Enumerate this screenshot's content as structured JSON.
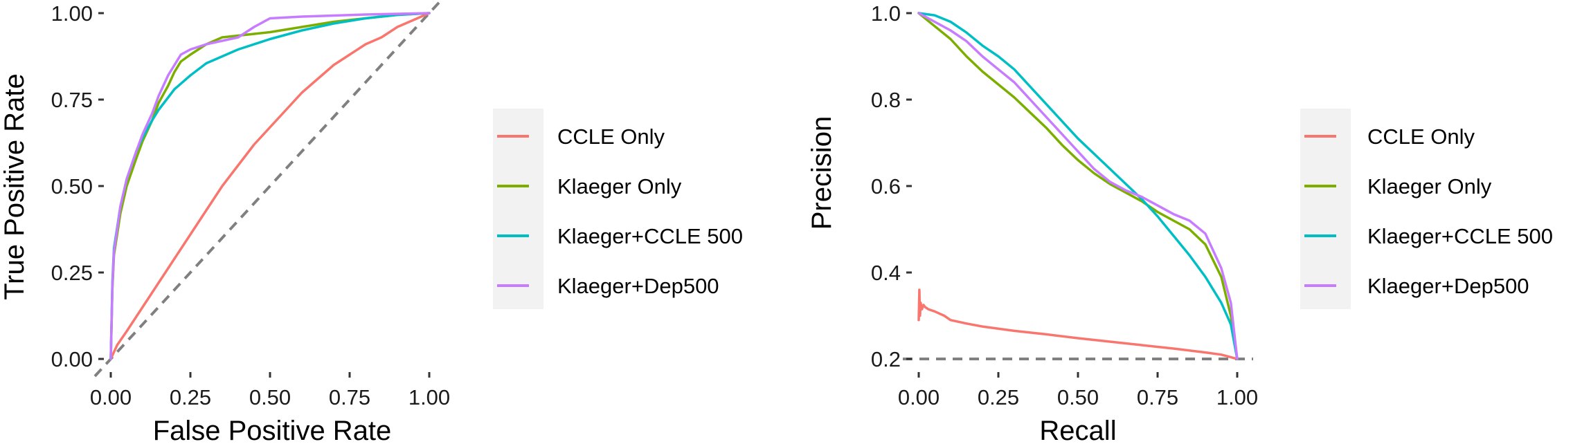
{
  "chart_data": [
    {
      "type": "line",
      "title": "",
      "xlabel": "False Positive Rate",
      "ylabel": "True Positive Rate",
      "xlim": [
        0,
        1
      ],
      "ylim": [
        0,
        1
      ],
      "x_ticks": [
        "0.00",
        "0.25",
        "0.50",
        "0.75",
        "1.00"
      ],
      "y_ticks": [
        "0.00",
        "0.25",
        "0.50",
        "0.75",
        "1.00"
      ],
      "grid": false,
      "reference_line": {
        "style": "dashed",
        "color": "#808080",
        "x": [
          -0.05,
          1.05
        ],
        "y": [
          -0.05,
          1.05
        ]
      },
      "legend_position": "right",
      "series": [
        {
          "name": "CCLE Only",
          "color": "#F8766D",
          "x": [
            0,
            0.02,
            0.05,
            0.1,
            0.15,
            0.2,
            0.25,
            0.3,
            0.35,
            0.4,
            0.45,
            0.5,
            0.55,
            0.6,
            0.65,
            0.7,
            0.75,
            0.8,
            0.85,
            0.9,
            0.95,
            1.0
          ],
          "y": [
            0,
            0.04,
            0.08,
            0.15,
            0.22,
            0.29,
            0.36,
            0.43,
            0.5,
            0.56,
            0.62,
            0.67,
            0.72,
            0.77,
            0.81,
            0.85,
            0.88,
            0.91,
            0.93,
            0.96,
            0.98,
            1.0
          ]
        },
        {
          "name": "Klaeger Only",
          "color": "#7CAE00",
          "x": [
            0,
            0.005,
            0.01,
            0.03,
            0.05,
            0.08,
            0.1,
            0.13,
            0.15,
            0.18,
            0.2,
            0.22,
            0.25,
            0.3,
            0.35,
            0.4,
            0.5,
            0.6,
            0.7,
            0.8,
            0.9,
            1.0
          ],
          "y": [
            0,
            0.2,
            0.3,
            0.42,
            0.5,
            0.58,
            0.63,
            0.69,
            0.74,
            0.79,
            0.83,
            0.86,
            0.88,
            0.91,
            0.93,
            0.935,
            0.945,
            0.96,
            0.975,
            0.985,
            0.995,
            1.0
          ]
        },
        {
          "name": "Klaeger+CCLE 500",
          "color": "#00BFC4",
          "x": [
            0,
            0.005,
            0.01,
            0.03,
            0.05,
            0.08,
            0.1,
            0.13,
            0.15,
            0.2,
            0.25,
            0.3,
            0.4,
            0.5,
            0.6,
            0.7,
            0.8,
            0.9,
            1.0
          ],
          "y": [
            0,
            0.22,
            0.32,
            0.44,
            0.52,
            0.6,
            0.64,
            0.69,
            0.72,
            0.78,
            0.82,
            0.855,
            0.895,
            0.925,
            0.95,
            0.97,
            0.985,
            0.995,
            1.0
          ]
        },
        {
          "name": "Klaeger+Dep500",
          "color": "#C77CFF",
          "x": [
            0,
            0.005,
            0.01,
            0.03,
            0.05,
            0.08,
            0.1,
            0.13,
            0.15,
            0.18,
            0.2,
            0.22,
            0.25,
            0.3,
            0.35,
            0.4,
            0.45,
            0.5,
            0.6,
            0.7,
            0.8,
            0.9,
            1.0
          ],
          "y": [
            0,
            0.21,
            0.31,
            0.44,
            0.52,
            0.6,
            0.65,
            0.71,
            0.76,
            0.82,
            0.85,
            0.88,
            0.895,
            0.91,
            0.92,
            0.93,
            0.96,
            0.985,
            0.99,
            0.993,
            0.996,
            0.998,
            1.0
          ]
        }
      ]
    },
    {
      "type": "line",
      "title": "",
      "xlabel": "Recall",
      "ylabel": "Precision",
      "xlim": [
        0,
        1
      ],
      "ylim": [
        0.2,
        1.0
      ],
      "x_ticks": [
        "0.00",
        "0.25",
        "0.50",
        "0.75",
        "1.00"
      ],
      "y_ticks": [
        "0.2",
        "0.4",
        "0.6",
        "0.8",
        "1.0"
      ],
      "grid": false,
      "reference_line": {
        "style": "dashed",
        "color": "#808080",
        "x": [
          -0.05,
          1.05
        ],
        "y": [
          0.2,
          0.2
        ]
      },
      "legend_position": "right",
      "series": [
        {
          "name": "CCLE Only",
          "color": "#F8766D",
          "x": [
            0,
            0.002,
            0.004,
            0.006,
            0.01,
            0.015,
            0.02,
            0.03,
            0.05,
            0.08,
            0.1,
            0.15,
            0.2,
            0.3,
            0.4,
            0.5,
            0.6,
            0.7,
            0.8,
            0.9,
            0.95,
            1.0
          ],
          "y": [
            0.29,
            0.36,
            0.3,
            0.33,
            0.315,
            0.325,
            0.32,
            0.315,
            0.31,
            0.3,
            0.29,
            0.282,
            0.275,
            0.265,
            0.257,
            0.248,
            0.24,
            0.232,
            0.224,
            0.215,
            0.21,
            0.2
          ]
        },
        {
          "name": "Klaeger Only",
          "color": "#7CAE00",
          "x": [
            0,
            0.05,
            0.1,
            0.15,
            0.2,
            0.25,
            0.3,
            0.35,
            0.4,
            0.45,
            0.5,
            0.55,
            0.6,
            0.65,
            0.7,
            0.75,
            0.8,
            0.85,
            0.9,
            0.95,
            0.98,
            1.0
          ],
          "y": [
            1.0,
            0.97,
            0.94,
            0.9,
            0.865,
            0.835,
            0.805,
            0.77,
            0.735,
            0.695,
            0.66,
            0.63,
            0.605,
            0.585,
            0.565,
            0.54,
            0.52,
            0.5,
            0.465,
            0.39,
            0.3,
            0.2
          ]
        },
        {
          "name": "Klaeger+CCLE 500",
          "color": "#00BFC4",
          "x": [
            0,
            0.05,
            0.1,
            0.15,
            0.2,
            0.25,
            0.3,
            0.35,
            0.4,
            0.45,
            0.5,
            0.55,
            0.6,
            0.65,
            0.7,
            0.75,
            0.8,
            0.85,
            0.9,
            0.95,
            0.98,
            1.0
          ],
          "y": [
            1.0,
            0.995,
            0.98,
            0.955,
            0.925,
            0.9,
            0.87,
            0.83,
            0.79,
            0.75,
            0.71,
            0.675,
            0.64,
            0.605,
            0.57,
            0.53,
            0.485,
            0.44,
            0.39,
            0.33,
            0.28,
            0.2
          ]
        },
        {
          "name": "Klaeger+Dep500",
          "color": "#C77CFF",
          "x": [
            0,
            0.05,
            0.1,
            0.15,
            0.2,
            0.25,
            0.3,
            0.35,
            0.4,
            0.45,
            0.5,
            0.55,
            0.6,
            0.65,
            0.7,
            0.75,
            0.8,
            0.85,
            0.9,
            0.95,
            0.98,
            1.0
          ],
          "y": [
            1.0,
            0.98,
            0.96,
            0.935,
            0.9,
            0.87,
            0.84,
            0.8,
            0.76,
            0.72,
            0.68,
            0.64,
            0.61,
            0.59,
            0.575,
            0.555,
            0.535,
            0.52,
            0.49,
            0.41,
            0.33,
            0.2
          ]
        }
      ]
    }
  ]
}
